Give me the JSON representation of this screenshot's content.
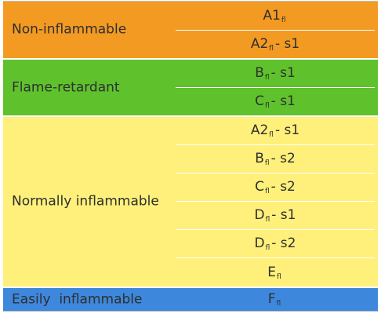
{
  "colors": {
    "non_inflammable": "#F39A22",
    "flame_retardant": "#5FC22D",
    "normally_inflammable": "#FEF07A",
    "easily_inflammable": "#3D88DD",
    "border": "#BFBFBF"
  },
  "groups": [
    {
      "label": "Non-inflammable",
      "rows": [
        {
          "main": "A1",
          "sub": "fl",
          "suffix": ""
        },
        {
          "main": "A2",
          "sub": "fl",
          "suffix": " - s1"
        }
      ]
    },
    {
      "label": "Flame-retardant",
      "rows": [
        {
          "main": "B",
          "sub": "fl",
          "suffix": " - s1"
        },
        {
          "main": "C",
          "sub": "fl",
          "suffix": " - s1"
        }
      ]
    },
    {
      "label": "Normally inflammable",
      "rows": [
        {
          "main": "A2",
          "sub": "fl",
          "suffix": " - s1"
        },
        {
          "main": "B",
          "sub": "fl",
          "suffix": " - s2"
        },
        {
          "main": "C",
          "sub": "fl",
          "suffix": " - s2"
        },
        {
          "main": "D",
          "sub": "fl",
          "suffix": " - s1"
        },
        {
          "main": "D",
          "sub": "fl",
          "suffix": " - s2"
        },
        {
          "main": "E",
          "sub": "fl",
          "suffix": ""
        }
      ]
    },
    {
      "label": "Easily  inflammable",
      "rows": [
        {
          "main": "F",
          "sub": "fl",
          "suffix": ""
        }
      ]
    }
  ]
}
